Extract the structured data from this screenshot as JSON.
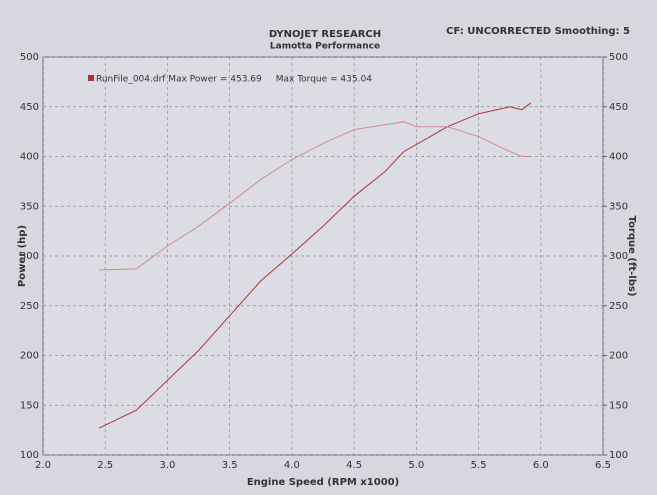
{
  "chart_data": {
    "type": "line",
    "title": "DYNOJET RESEARCH",
    "subtitle": "Lamotta Performance",
    "annotation": "CF: UNCORRECTED  Smoothing: 5",
    "x_label": "Engine Speed (RPM x1000)",
    "y_label": "Power (hp)",
    "y2_label": "Torque (ft-lbs)",
    "x": [
      2.45,
      2.75,
      3.0,
      3.25,
      3.5,
      3.75,
      4.0,
      4.25,
      4.5,
      4.75,
      4.9,
      5.0,
      5.25,
      5.5,
      5.75,
      5.85,
      5.92
    ],
    "series": [
      {
        "name": "RunFile_004.drf Max Power = 453.69",
        "color": "#b03434",
        "axis": "y",
        "values": [
          127,
          145,
          175,
          205,
          240,
          275,
          302,
          330,
          360,
          385,
          405,
          412,
          430,
          443,
          450,
          447,
          454
        ]
      },
      {
        "name": "Max Torque = 435.04",
        "color": "#cf8b8b",
        "axis": "y2",
        "values": [
          286,
          287,
          310,
          330,
          353,
          377,
          397,
          413,
          427,
          432,
          435,
          430,
          430,
          420,
          405,
          400,
          400
        ]
      }
    ],
    "xlim": [
      2.0,
      6.5
    ],
    "xticks": [
      {
        "value": 2.0,
        "label": "2.0"
      },
      2.5,
      {
        "value": 3.0,
        "label": "3.0"
      },
      3.5,
      {
        "value": 4.0,
        "label": "4.0"
      },
      4.5,
      {
        "value": 5.0,
        "label": "5.0"
      },
      5.5,
      {
        "value": 6.0,
        "label": "6.0"
      },
      6.5
    ],
    "ylim": [
      100,
      500
    ],
    "yticks": [
      100,
      150,
      200,
      250,
      300,
      350,
      400,
      450,
      500
    ],
    "y2lim": [
      100,
      500
    ],
    "y2ticks": [
      100,
      150,
      200,
      250,
      300,
      350,
      400,
      450,
      500
    ],
    "grid": true
  }
}
